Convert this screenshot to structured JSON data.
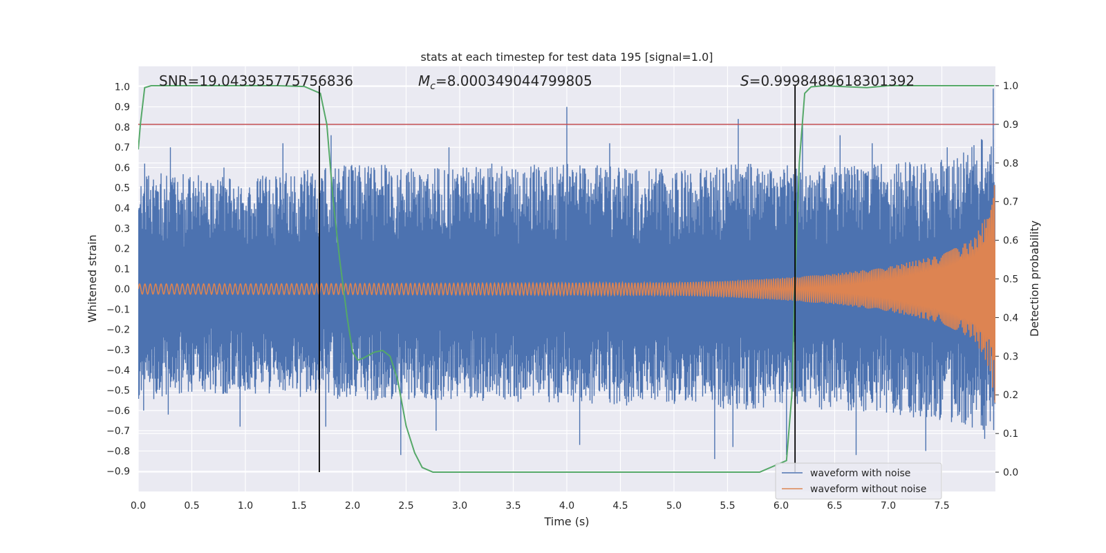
{
  "chart_data": {
    "type": "line",
    "title": "stats at each timestep for test data 195 [signal=1.0]",
    "xlabel": "Time (s)",
    "ylabel": "Whitened strain",
    "ylabel_right": "Detection probability",
    "xlim": [
      0.0,
      8.0
    ],
    "ylim": [
      -1.0,
      1.1
    ],
    "ylim_right": [
      -0.05,
      1.05
    ],
    "x_ticks": [
      0.0,
      0.5,
      1.0,
      1.5,
      2.0,
      2.5,
      3.0,
      3.5,
      4.0,
      4.5,
      5.0,
      5.5,
      6.0,
      6.5,
      7.0,
      7.5
    ],
    "x_tick_labels": [
      "0.0",
      "0.5",
      "1.0",
      "1.5",
      "2.0",
      "2.5",
      "3.0",
      "3.5",
      "4.0",
      "4.5",
      "5.0",
      "5.5",
      "6.0",
      "6.5",
      "7.0",
      "7.5"
    ],
    "y_ticks": [
      1.0,
      0.9,
      0.8,
      0.7,
      0.6,
      0.5,
      0.4,
      0.3,
      0.2,
      0.1,
      0.0,
      -0.1,
      -0.2,
      -0.3,
      -0.4,
      -0.5,
      -0.6,
      -0.7,
      -0.8,
      -0.9
    ],
    "y_tick_labels": [
      "1.0",
      "0.9",
      "0.8",
      "0.7",
      "0.6",
      "0.5",
      "0.4",
      "0.3",
      "0.2",
      "0.1",
      "0.0",
      "−0.1",
      "−0.2",
      "−0.3",
      "−0.4",
      "−0.5",
      "−0.6",
      "−0.7",
      "−0.8",
      "−0.9"
    ],
    "y_right_ticks": [
      1.0,
      0.9,
      0.8,
      0.7,
      0.6,
      0.5,
      0.4,
      0.3,
      0.2,
      0.1,
      0.0
    ],
    "y_right_tick_labels": [
      "1.0",
      "0.9",
      "0.8",
      "0.7",
      "0.6",
      "0.5",
      "0.4",
      "0.3",
      "0.2",
      "0.1",
      "0.0"
    ],
    "grid": true,
    "legend_placement": "lower-right",
    "annotations": {
      "snr": "SNR=19.043935775756836",
      "mc_symbol": "M",
      "mc_sub": "c",
      "mc_value": "=8.000349044799805",
      "s_symbol": "S",
      "s_value": "=0.9998489618301392"
    },
    "vertical_lines_x": [
      1.69,
      6.13
    ],
    "threshold_right": 0.9,
    "series": [
      {
        "name": "waveform with noise",
        "color": "#4c72b0",
        "axis": "left",
        "envelope": {
          "x": [
            0.0,
            1.0,
            2.0,
            3.0,
            4.0,
            5.0,
            5.6,
            6.0,
            6.5,
            7.0,
            7.5,
            7.9
          ],
          "max": [
            0.58,
            0.55,
            0.62,
            0.6,
            0.62,
            0.6,
            0.62,
            0.62,
            0.62,
            0.62,
            0.65,
            0.75
          ],
          "min": [
            -0.55,
            -0.52,
            -0.55,
            -0.55,
            -0.57,
            -0.58,
            -0.6,
            -0.58,
            -0.6,
            -0.62,
            -0.65,
            -0.7
          ]
        },
        "spikes": [
          [
            0.06,
            0.62
          ],
          [
            0.3,
            0.7
          ],
          [
            0.8,
            0.6
          ],
          [
            1.35,
            0.72
          ],
          [
            1.8,
            0.76
          ],
          [
            2.2,
            0.6
          ],
          [
            2.9,
            0.7
          ],
          [
            3.3,
            0.62
          ],
          [
            4.0,
            0.9
          ],
          [
            4.4,
            0.72
          ],
          [
            5.6,
            0.84
          ],
          [
            6.2,
            0.82
          ],
          [
            6.55,
            0.76
          ],
          [
            6.85,
            0.72
          ],
          [
            7.55,
            0.7
          ],
          [
            7.87,
            0.74
          ],
          [
            7.98,
            0.99
          ],
          [
            0.05,
            -0.6
          ],
          [
            0.28,
            -0.62
          ],
          [
            0.95,
            -0.68
          ],
          [
            1.75,
            -0.68
          ],
          [
            2.45,
            -0.82
          ],
          [
            2.78,
            -0.7
          ],
          [
            4.12,
            -0.77
          ],
          [
            5.38,
            -0.84
          ],
          [
            5.55,
            -0.78
          ],
          [
            6.05,
            -0.82
          ],
          [
            6.7,
            -0.82
          ],
          [
            7.35,
            -0.8
          ],
          [
            7.9,
            -0.74
          ]
        ]
      },
      {
        "name": "waveform without noise",
        "color": "#dd8452",
        "axis": "left",
        "amplitude": {
          "x": [
            0.0,
            2.0,
            4.0,
            5.0,
            5.5,
            6.0,
            6.5,
            7.0,
            7.5,
            7.8,
            7.95,
            8.0
          ],
          "amp": [
            0.025,
            0.027,
            0.03,
            0.032,
            0.04,
            0.055,
            0.075,
            0.11,
            0.17,
            0.25,
            0.4,
            0.58
          ]
        }
      },
      {
        "name": "",
        "color": "#55a868",
        "axis": "right",
        "x": [
          0.0,
          0.02,
          0.06,
          0.12,
          0.3,
          0.6,
          1.0,
          1.3,
          1.55,
          1.7,
          1.76,
          1.82,
          1.88,
          1.95,
          2.0,
          2.05,
          2.1,
          2.2,
          2.28,
          2.35,
          2.42,
          2.5,
          2.58,
          2.65,
          2.75,
          3.0,
          4.0,
          5.0,
          5.8,
          6.05,
          6.1,
          6.13,
          6.17,
          6.22,
          6.28,
          6.4,
          6.8,
          7.0,
          7.5,
          7.99
        ],
        "y": [
          0.835,
          0.9,
          0.995,
          1.0,
          1.0,
          1.0,
          1.0,
          1.0,
          0.998,
          0.98,
          0.9,
          0.7,
          0.55,
          0.4,
          0.31,
          0.29,
          0.295,
          0.31,
          0.315,
          0.3,
          0.24,
          0.12,
          0.05,
          0.012,
          0.0,
          0.0,
          0.0,
          0.0,
          0.0,
          0.03,
          0.2,
          0.5,
          0.8,
          0.98,
          0.997,
          1.0,
          0.995,
          1.0,
          1.0,
          1.0
        ]
      }
    ]
  }
}
